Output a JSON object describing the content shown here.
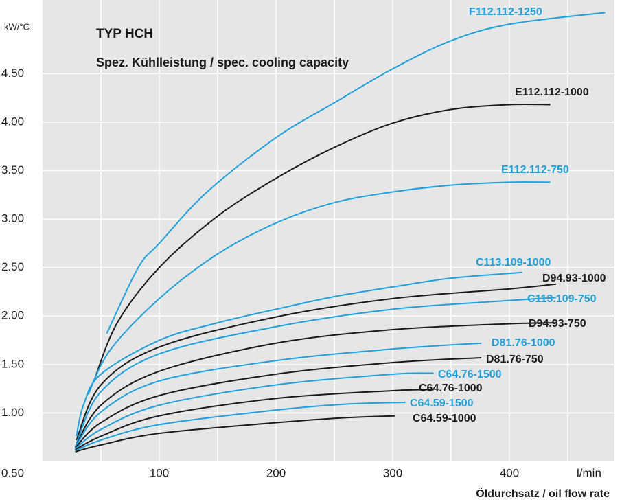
{
  "chart_data": {
    "type": "line",
    "title": "TYP HCH",
    "subtitle": "Spez. Kühlleistung / spec. cooling capacity",
    "y_unit": "kW/°C",
    "x_unit": "l/min",
    "x_label": "Öldurchsatz / oil flow rate",
    "xlim": [
      0,
      490
    ],
    "ylim": [
      0.5,
      5.26
    ],
    "xticks": [
      100,
      200,
      300,
      400
    ],
    "xminor": [
      50,
      150,
      250,
      350,
      450
    ],
    "yticks": [
      {
        "value": 0.5,
        "label": "0.50"
      },
      {
        "value": 1.0,
        "label": "1.00"
      },
      {
        "value": 1.5,
        "label": "1.50"
      },
      {
        "value": 2.0,
        "label": "2.00"
      },
      {
        "value": 2.5,
        "label": "2.50"
      },
      {
        "value": 3.0,
        "label": "3.00"
      },
      {
        "value": 3.5,
        "label": "3.50"
      },
      {
        "value": 4.0,
        "label": "4.00"
      },
      {
        "value": 4.5,
        "label": "4.50"
      }
    ],
    "grid": true,
    "series": [
      {
        "name": "F112.112-1250",
        "color": "#1ea0dc",
        "x": [
          55,
          82,
          100,
          141,
          200,
          250,
          300,
          350,
          400,
          482
        ],
        "values": [
          1.82,
          2.5,
          2.75,
          3.28,
          3.84,
          4.2,
          4.55,
          4.84,
          5.01,
          5.13
        ]
      },
      {
        "name": "E112.112-1000",
        "color": "#1a1a1a",
        "x": [
          44,
          64,
          100,
          150,
          200,
          250,
          300,
          350,
          400,
          435
        ],
        "values": [
          1.33,
          1.93,
          2.5,
          3.03,
          3.42,
          3.74,
          3.99,
          4.13,
          4.18,
          4.18
        ]
      },
      {
        "name": "E112.112-750",
        "color": "#1ea0dc",
        "x": [
          39,
          58,
          100,
          150,
          200,
          250,
          300,
          350,
          400,
          435
        ],
        "values": [
          1.19,
          1.65,
          2.18,
          2.64,
          2.96,
          3.17,
          3.28,
          3.35,
          3.38,
          3.38
        ]
      },
      {
        "name": "C113.109-1000",
        "color": "#1ea0dc",
        "x": [
          29,
          35,
          50,
          100,
          150,
          200,
          250,
          300,
          350,
          411
        ],
        "values": [
          0.76,
          1.08,
          1.4,
          1.75,
          1.93,
          2.07,
          2.2,
          2.3,
          2.39,
          2.45
        ]
      },
      {
        "name": "D94.93-1000",
        "color": "#1a1a1a",
        "x": [
          29,
          50,
          100,
          200,
          300,
          400,
          440
        ],
        "values": [
          0.72,
          1.29,
          1.68,
          1.99,
          2.18,
          2.28,
          2.33
        ]
      },
      {
        "name": "C113.109-750",
        "color": "#1ea0dc",
        "x": [
          29,
          50,
          100,
          200,
          300,
          400,
          440
        ],
        "values": [
          0.69,
          1.22,
          1.61,
          1.89,
          2.07,
          2.16,
          2.19
        ]
      },
      {
        "name": "D94.93-750",
        "color": "#1a1a1a",
        "x": [
          28,
          50,
          100,
          200,
          300,
          400,
          440
        ],
        "values": [
          0.65,
          1.08,
          1.43,
          1.72,
          1.86,
          1.92,
          1.93
        ]
      },
      {
        "name": "D81.76-1000",
        "color": "#1ea0dc",
        "x": [
          28,
          50,
          100,
          200,
          300,
          376
        ],
        "values": [
          0.65,
          1.01,
          1.33,
          1.54,
          1.66,
          1.72
        ]
      },
      {
        "name": "D81.76-750",
        "color": "#1a1a1a",
        "x": [
          28,
          50,
          100,
          200,
          300,
          376
        ],
        "values": [
          0.64,
          0.9,
          1.18,
          1.4,
          1.52,
          1.57
        ]
      },
      {
        "name": "C64.76-1500",
        "color": "#1ea0dc",
        "x": [
          28,
          50,
          100,
          200,
          300,
          335
        ],
        "values": [
          0.63,
          0.83,
          1.08,
          1.29,
          1.4,
          1.41
        ]
      },
      {
        "name": "C64.76-1000",
        "color": "#1a1a1a",
        "x": [
          28,
          50,
          100,
          200,
          300,
          335
        ],
        "values": [
          0.62,
          0.76,
          0.97,
          1.15,
          1.23,
          1.24
        ]
      },
      {
        "name": "C64.59-1500",
        "color": "#1ea0dc",
        "x": [
          28,
          50,
          100,
          200,
          258,
          311
        ],
        "values": [
          0.61,
          0.72,
          0.88,
          1.03,
          1.09,
          1.11
        ]
      },
      {
        "name": "C64.59-1000",
        "color": "#1a1a1a",
        "x": [
          28,
          50,
          100,
          200,
          258,
          302
        ],
        "values": [
          0.6,
          0.67,
          0.79,
          0.9,
          0.95,
          0.97
        ]
      }
    ]
  }
}
